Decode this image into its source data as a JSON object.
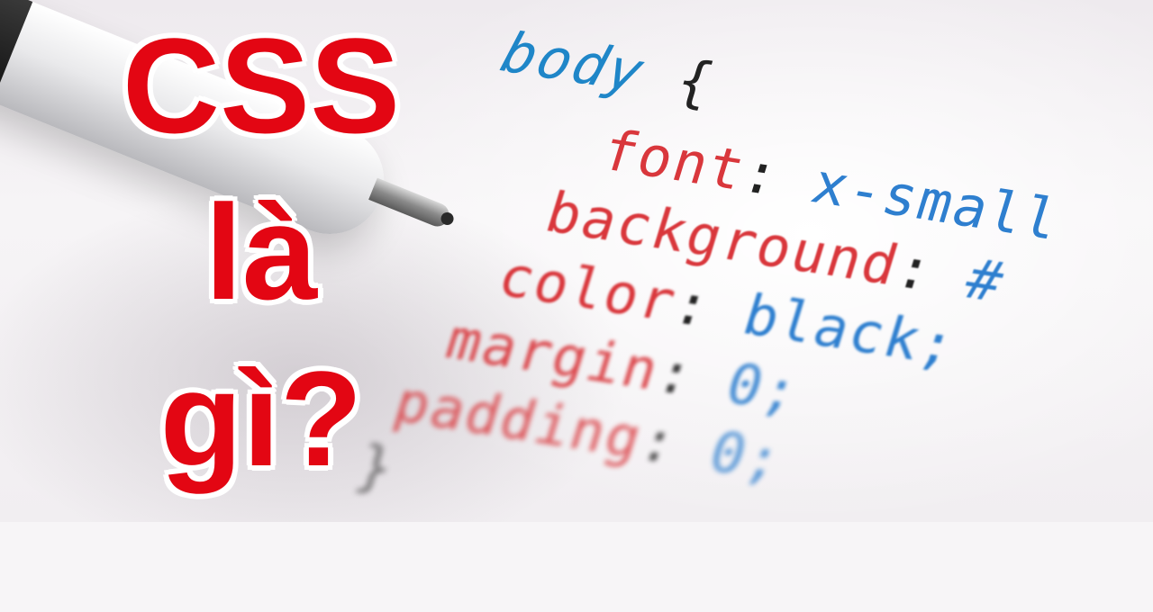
{
  "headline": {
    "line1": "CSS",
    "line2": "là",
    "line3": "gì?"
  },
  "code": {
    "selector": "body",
    "open_brace": "{",
    "close_brace": "}",
    "declarations": [
      {
        "prop": "font",
        "value": "x-small"
      },
      {
        "prop": "background",
        "value": "#"
      },
      {
        "prop": "color",
        "value": "black;"
      },
      {
        "prop": "margin",
        "value": "0;"
      },
      {
        "prop": "padding",
        "value": "0;"
      }
    ]
  },
  "colors": {
    "headline": "#e30613",
    "selector": "#1f86c8",
    "property": "#d9373c",
    "value": "#2e7fcf"
  }
}
